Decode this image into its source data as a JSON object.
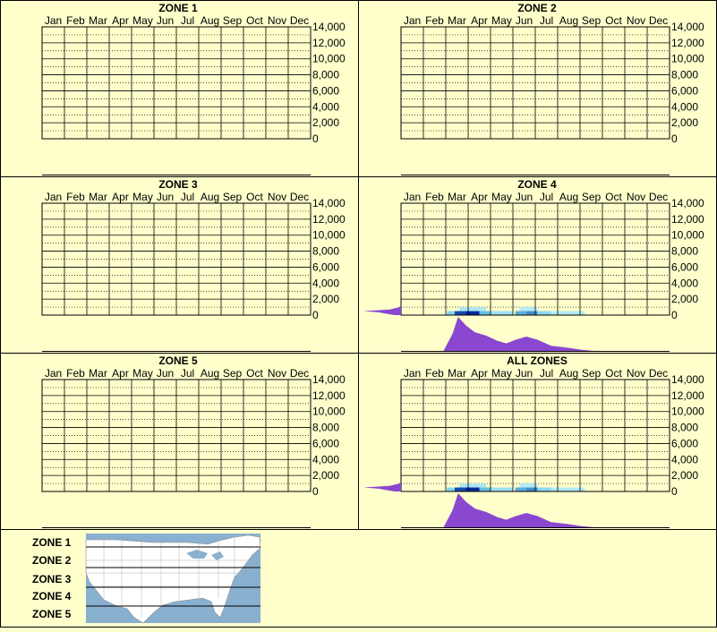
{
  "colors": {
    "background": "#ffffcc",
    "frame": "#000000",
    "grid_major": "#000000",
    "grid_minor": "#000000",
    "density_fill": "#8a47d0",
    "heat_low": "#c8f0f8",
    "heat_mid": "#70d0e8",
    "heat_high": "#0028a0",
    "map_water": "#8ab0d0",
    "map_land": "#ffffff"
  },
  "chart_data": [
    {
      "type": "heatmap",
      "title": "ZONE 1",
      "categories": [
        "Jan",
        "Feb",
        "Mar",
        "Apr",
        "May",
        "Jun",
        "Jul",
        "Aug",
        "Sep",
        "Oct",
        "Nov",
        "Dec"
      ],
      "y_ticks": [
        "14,000",
        "12,000",
        "10,000",
        "8,000",
        "6,000",
        "4,000",
        "2,000",
        "0"
      ],
      "ylim": [
        0,
        14000
      ],
      "grid": true,
      "cells": [],
      "elevation_density": [],
      "month_density": []
    },
    {
      "type": "heatmap",
      "title": "ZONE 2",
      "categories": [
        "Jan",
        "Feb",
        "Mar",
        "Apr",
        "May",
        "Jun",
        "Jul",
        "Aug",
        "Sep",
        "Oct",
        "Nov",
        "Dec"
      ],
      "y_ticks": [
        "14,000",
        "12,000",
        "10,000",
        "8,000",
        "6,000",
        "4,000",
        "2,000",
        "0"
      ],
      "ylim": [
        0,
        14000
      ],
      "grid": true,
      "cells": [],
      "elevation_density": [],
      "month_density": []
    },
    {
      "type": "heatmap",
      "title": "ZONE 3",
      "categories": [
        "Jan",
        "Feb",
        "Mar",
        "Apr",
        "May",
        "Jun",
        "Jul",
        "Aug",
        "Sep",
        "Oct",
        "Nov",
        "Dec"
      ],
      "y_ticks": [
        "14,000",
        "12,000",
        "10,000",
        "8,000",
        "6,000",
        "4,000",
        "2,000",
        "0"
      ],
      "ylim": [
        0,
        14000
      ],
      "grid": true,
      "cells": [],
      "elevation_density": [],
      "month_density": []
    },
    {
      "type": "heatmap",
      "title": "ZONE 4",
      "categories": [
        "Jan",
        "Feb",
        "Mar",
        "Apr",
        "May",
        "Jun",
        "Jul",
        "Aug",
        "Sep",
        "Oct",
        "Nov",
        "Dec"
      ],
      "y_ticks": [
        "14,000",
        "12,000",
        "10,000",
        "8,000",
        "6,000",
        "4,000",
        "2,000",
        "0"
      ],
      "ylim": [
        0,
        14000
      ],
      "grid": true,
      "cells": [
        {
          "month": 3.05,
          "months": 0.35,
          "elev": 0,
          "elev_top": 500,
          "level": 0.4
        },
        {
          "month": 3.4,
          "months": 0.5,
          "elev": 0,
          "elev_top": 500,
          "level": 0.9
        },
        {
          "month": 3.9,
          "months": 0.6,
          "elev": 0,
          "elev_top": 500,
          "level": 1.0
        },
        {
          "month": 4.5,
          "months": 0.5,
          "elev": 0,
          "elev_top": 500,
          "level": 0.55
        },
        {
          "month": 3.6,
          "months": 1.2,
          "elev": 500,
          "elev_top": 1000,
          "level": 0.15
        },
        {
          "month": 5.0,
          "months": 1.0,
          "elev": 0,
          "elev_top": 500,
          "level": 0.25
        },
        {
          "month": 6.1,
          "months": 0.5,
          "elev": 0,
          "elev_top": 500,
          "level": 0.6
        },
        {
          "month": 6.6,
          "months": 0.5,
          "elev": 0,
          "elev_top": 500,
          "level": 0.7
        },
        {
          "month": 7.1,
          "months": 0.6,
          "elev": 0,
          "elev_top": 500,
          "level": 0.35
        },
        {
          "month": 7.7,
          "months": 1.5,
          "elev": 0,
          "elev_top": 500,
          "level": 0.12
        },
        {
          "month": 6.3,
          "months": 0.8,
          "elev": 500,
          "elev_top": 1000,
          "level": 0.1
        }
      ],
      "elevation_density": [
        [
          0,
          0.17
        ],
        [
          150,
          0.35
        ],
        [
          350,
          0.6
        ],
        [
          500,
          1.0
        ],
        [
          700,
          0.3
        ],
        [
          1000,
          0.05
        ],
        [
          1200,
          0
        ]
      ],
      "month_density": [
        [
          2.9,
          0
        ],
        [
          3.3,
          0.5
        ],
        [
          3.55,
          1.0
        ],
        [
          3.9,
          0.75
        ],
        [
          4.3,
          0.55
        ],
        [
          4.8,
          0.45
        ],
        [
          5.3,
          0.3
        ],
        [
          5.7,
          0.22
        ],
        [
          6.1,
          0.32
        ],
        [
          6.6,
          0.42
        ],
        [
          7.1,
          0.33
        ],
        [
          7.7,
          0.15
        ],
        [
          8.4,
          0.1
        ],
        [
          9.0,
          0.04
        ],
        [
          9.6,
          0
        ]
      ]
    },
    {
      "type": "heatmap",
      "title": "ZONE 5",
      "categories": [
        "Jan",
        "Feb",
        "Mar",
        "Apr",
        "May",
        "Jun",
        "Jul",
        "Aug",
        "Sep",
        "Oct",
        "Nov",
        "Dec"
      ],
      "y_ticks": [
        "14,000",
        "12,000",
        "10,000",
        "8,000",
        "6,000",
        "4,000",
        "2,000",
        "0"
      ],
      "ylim": [
        0,
        14000
      ],
      "grid": true,
      "cells": [],
      "elevation_density": [],
      "month_density": []
    },
    {
      "type": "heatmap",
      "title": "ALL ZONES",
      "categories": [
        "Jan",
        "Feb",
        "Mar",
        "Apr",
        "May",
        "Jun",
        "Jul",
        "Aug",
        "Sep",
        "Oct",
        "Nov",
        "Dec"
      ],
      "y_ticks": [
        "14,000",
        "12,000",
        "10,000",
        "8,000",
        "6,000",
        "4,000",
        "2,000",
        "0"
      ],
      "ylim": [
        0,
        14000
      ],
      "grid": true,
      "cells": [
        {
          "month": 3.05,
          "months": 0.35,
          "elev": 0,
          "elev_top": 500,
          "level": 0.4
        },
        {
          "month": 3.4,
          "months": 0.5,
          "elev": 0,
          "elev_top": 500,
          "level": 0.9
        },
        {
          "month": 3.9,
          "months": 0.6,
          "elev": 0,
          "elev_top": 500,
          "level": 1.0
        },
        {
          "month": 4.5,
          "months": 0.5,
          "elev": 0,
          "elev_top": 500,
          "level": 0.55
        },
        {
          "month": 3.6,
          "months": 1.2,
          "elev": 500,
          "elev_top": 1000,
          "level": 0.15
        },
        {
          "month": 5.0,
          "months": 1.0,
          "elev": 0,
          "elev_top": 500,
          "level": 0.25
        },
        {
          "month": 6.1,
          "months": 0.5,
          "elev": 0,
          "elev_top": 500,
          "level": 0.6
        },
        {
          "month": 6.6,
          "months": 0.5,
          "elev": 0,
          "elev_top": 500,
          "level": 0.7
        },
        {
          "month": 7.1,
          "months": 0.6,
          "elev": 0,
          "elev_top": 500,
          "level": 0.35
        },
        {
          "month": 7.7,
          "months": 1.5,
          "elev": 0,
          "elev_top": 500,
          "level": 0.12
        },
        {
          "month": 6.3,
          "months": 0.8,
          "elev": 500,
          "elev_top": 1000,
          "level": 0.1
        }
      ],
      "elevation_density": [
        [
          0,
          0.17
        ],
        [
          150,
          0.35
        ],
        [
          350,
          0.6
        ],
        [
          500,
          1.0
        ],
        [
          700,
          0.3
        ],
        [
          1000,
          0.05
        ],
        [
          1200,
          0
        ]
      ],
      "month_density": [
        [
          2.9,
          0
        ],
        [
          3.3,
          0.5
        ],
        [
          3.55,
          1.0
        ],
        [
          3.9,
          0.75
        ],
        [
          4.3,
          0.55
        ],
        [
          4.8,
          0.45
        ],
        [
          5.3,
          0.3
        ],
        [
          5.7,
          0.22
        ],
        [
          6.1,
          0.32
        ],
        [
          6.6,
          0.42
        ],
        [
          7.1,
          0.33
        ],
        [
          7.7,
          0.15
        ],
        [
          8.4,
          0.1
        ],
        [
          9.0,
          0.04
        ],
        [
          9.6,
          0
        ]
      ]
    }
  ],
  "legend": {
    "zones": [
      "ZONE 1",
      "ZONE 2",
      "ZONE 3",
      "ZONE 4",
      "ZONE 5"
    ],
    "map_icon": "us-map-icon"
  }
}
